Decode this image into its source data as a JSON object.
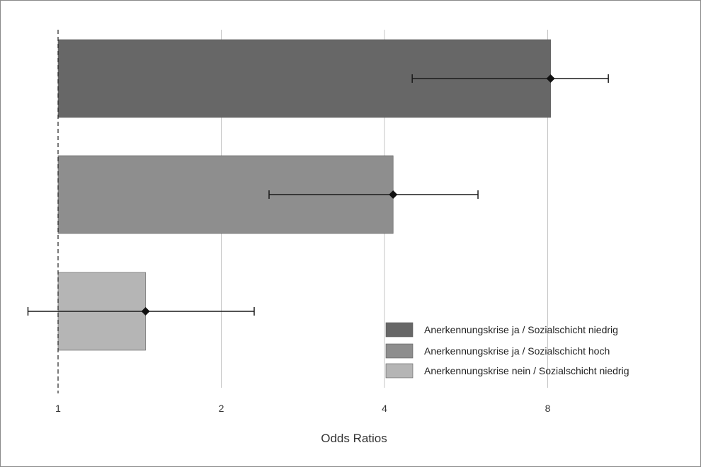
{
  "chart_data": {
    "type": "bar",
    "orientation": "horizontal",
    "x_scale": "log2",
    "xlim": [
      1,
      10.4
    ],
    "xlabel": "Odds Ratios",
    "x_ticks": [
      "1",
      "2",
      "4",
      "8"
    ],
    "x_tick_values": [
      1,
      2,
      4,
      8
    ],
    "grid": true,
    "reference_line": 1,
    "legend_position": "bottom-right",
    "categories": [
      "Anerkennungskrise ja / Sozialschicht niedrig",
      "Anerkennungskrise ja  / Sozialschicht hoch",
      "Anerkennungskrise nein / Sozialschicht niedrig"
    ],
    "values": [
      8.1,
      4.15,
      1.45
    ],
    "ci_lower": [
      4.5,
      2.45,
      0.88
    ],
    "ci_upper": [
      10.35,
      5.95,
      2.3
    ],
    "colors": [
      "#676767",
      "#8e8e8e",
      "#b5b5b5"
    ]
  }
}
